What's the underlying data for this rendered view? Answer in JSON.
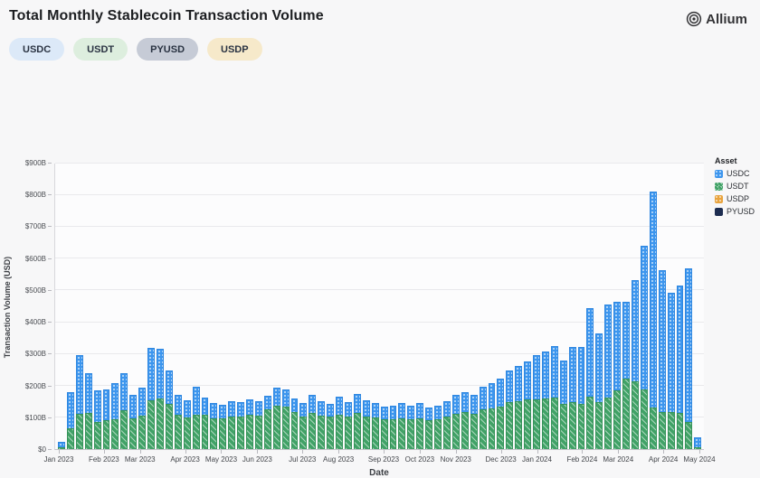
{
  "header": {
    "title": "Total Monthly Stablecoin Transaction Volume",
    "logo_text": "Allium"
  },
  "filters": [
    {
      "label": "USDC",
      "bg": "#dce9f8"
    },
    {
      "label": "USDT",
      "bg": "#ddeede"
    },
    {
      "label": "PYUSD",
      "bg": "#c6cbd6"
    },
    {
      "label": "USDP",
      "bg": "#f6e9ca"
    }
  ],
  "chart_data": {
    "type": "bar",
    "stacked": true,
    "title": "Total Monthly Stablecoin Transaction Volume",
    "xlabel": "Date",
    "ylabel": "Transaction Volume (USD)",
    "unit": "billions USD",
    "x_unit": "week",
    "ylim": [
      0,
      900
    ],
    "ytick_step": 100,
    "grid": true,
    "legend_position": "right",
    "legend_title": "Asset",
    "bars_total": 72,
    "month_ticks": [
      {
        "label": "Jan 2023",
        "bar_index": 0
      },
      {
        "label": "Feb 2023",
        "bar_index": 5
      },
      {
        "label": "Mar 2023",
        "bar_index": 9
      },
      {
        "label": "Apr 2023",
        "bar_index": 14
      },
      {
        "label": "May 2023",
        "bar_index": 18
      },
      {
        "label": "Jun 2023",
        "bar_index": 22
      },
      {
        "label": "Jul 2023",
        "bar_index": 27
      },
      {
        "label": "Aug 2023",
        "bar_index": 31
      },
      {
        "label": "Sep 2023",
        "bar_index": 36
      },
      {
        "label": "Oct 2023",
        "bar_index": 40
      },
      {
        "label": "Nov 2023",
        "bar_index": 44
      },
      {
        "label": "Dec 2023",
        "bar_index": 49
      },
      {
        "label": "Jan 2024",
        "bar_index": 53
      },
      {
        "label": "Feb 2024",
        "bar_index": 58
      },
      {
        "label": "Mar 2024",
        "bar_index": 62
      },
      {
        "label": "Apr 2024",
        "bar_index": 67
      },
      {
        "label": "May 2024",
        "bar_index": 71
      }
    ],
    "series": [
      {
        "name": "USDT",
        "color": "#41a267",
        "pattern": "diagonal-stripes",
        "values": [
          6,
          66,
          110,
          113,
          85,
          90,
          95,
          122,
          98,
          105,
          155,
          160,
          142,
          108,
          100,
          108,
          108,
          98,
          97,
          104,
          102,
          108,
          105,
          125,
          136,
          133,
          117,
          102,
          113,
          105,
          102,
          108,
          103,
          114,
          103,
          100,
          93,
          95,
          98,
          95,
          98,
          90,
          94,
          102,
          110,
          116,
          112,
          124,
          128,
          135,
          148,
          152,
          158,
          158,
          160,
          161,
          142,
          147,
          142,
          166,
          147,
          161,
          184,
          222,
          213,
          189,
          132,
          118,
          118,
          113,
          85,
          5
        ]
      },
      {
        "name": "USDC",
        "color": "#3d96ee",
        "pattern": "dots",
        "values": [
          16,
          114,
          185,
          127,
          100,
          98,
          113,
          118,
          72,
          90,
          165,
          155,
          106,
          62,
          54,
          88,
          55,
          46,
          43,
          48,
          46,
          50,
          47,
          43,
          57,
          55,
          42,
          43,
          58,
          45,
          40,
          57,
          45,
          60,
          50,
          46,
          40,
          42,
          46,
          42,
          46,
          40,
          43,
          50,
          62,
          64,
          58,
          72,
          80,
          87,
          100,
          110,
          118,
          137,
          147,
          165,
          137,
          175,
          181,
          279,
          217,
          295,
          281,
          243,
          319,
          451,
          681,
          445,
          376,
          402,
          484,
          33
        ]
      }
    ],
    "legend": {
      "title": "Asset",
      "items": [
        {
          "label": "USDC",
          "color": "#3d96ee",
          "pattern": "dots"
        },
        {
          "label": "USDT",
          "color": "#41a267",
          "pattern": "diagonal-stripes"
        },
        {
          "label": "USDP",
          "color": "#e8a33d",
          "pattern": "dots"
        },
        {
          "label": "PYUSD",
          "color": "#1d2d50",
          "pattern": "solid"
        }
      ]
    }
  }
}
